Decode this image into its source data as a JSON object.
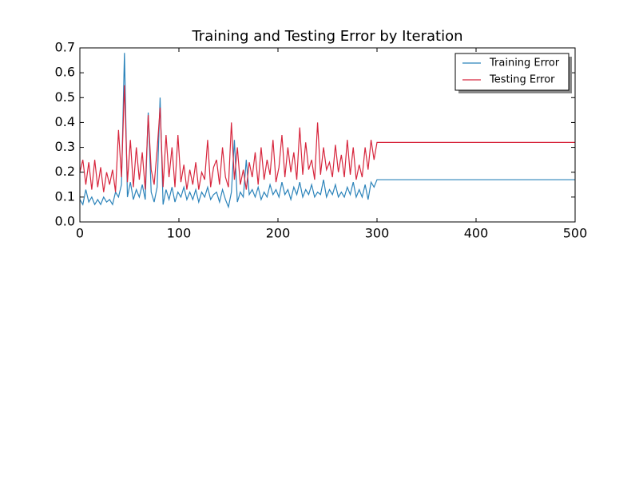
{
  "chart_data": {
    "type": "line",
    "title": "Training and Testing Error by Iteration",
    "x": [
      0,
      3,
      6,
      9,
      12,
      15,
      18,
      21,
      24,
      27,
      30,
      33,
      36,
      39,
      42,
      45,
      48,
      51,
      54,
      57,
      60,
      63,
      66,
      69,
      72,
      75,
      78,
      81,
      84,
      87,
      90,
      93,
      96,
      99,
      102,
      105,
      108,
      111,
      114,
      117,
      120,
      123,
      126,
      129,
      132,
      135,
      138,
      141,
      144,
      147,
      150,
      153,
      156,
      159,
      162,
      165,
      168,
      171,
      174,
      177,
      180,
      183,
      186,
      189,
      192,
      195,
      198,
      201,
      204,
      207,
      210,
      213,
      216,
      219,
      222,
      225,
      228,
      231,
      234,
      237,
      240,
      243,
      246,
      249,
      252,
      255,
      258,
      261,
      264,
      267,
      270,
      273,
      276,
      279,
      282,
      285,
      288,
      291,
      294,
      297,
      300,
      500
    ],
    "series": [
      {
        "name": "Training Error",
        "color": "#2b83ba",
        "values": [
          0.09,
          0.07,
          0.13,
          0.08,
          0.1,
          0.07,
          0.09,
          0.07,
          0.1,
          0.08,
          0.09,
          0.07,
          0.12,
          0.1,
          0.15,
          0.68,
          0.1,
          0.16,
          0.09,
          0.13,
          0.1,
          0.15,
          0.09,
          0.44,
          0.12,
          0.08,
          0.14,
          0.5,
          0.07,
          0.13,
          0.09,
          0.14,
          0.08,
          0.12,
          0.1,
          0.14,
          0.09,
          0.12,
          0.09,
          0.13,
          0.08,
          0.12,
          0.1,
          0.14,
          0.09,
          0.11,
          0.12,
          0.08,
          0.13,
          0.09,
          0.06,
          0.12,
          0.33,
          0.08,
          0.12,
          0.1,
          0.25,
          0.11,
          0.13,
          0.1,
          0.14,
          0.09,
          0.12,
          0.1,
          0.15,
          0.11,
          0.13,
          0.1,
          0.16,
          0.11,
          0.13,
          0.09,
          0.14,
          0.11,
          0.16,
          0.1,
          0.13,
          0.11,
          0.15,
          0.1,
          0.12,
          0.11,
          0.17,
          0.1,
          0.13,
          0.11,
          0.15,
          0.1,
          0.12,
          0.1,
          0.14,
          0.11,
          0.16,
          0.1,
          0.13,
          0.1,
          0.15,
          0.09,
          0.16,
          0.14,
          0.17,
          0.17
        ]
      },
      {
        "name": "Testing Error",
        "color": "#d7263d",
        "values": [
          0.2,
          0.25,
          0.15,
          0.24,
          0.13,
          0.25,
          0.14,
          0.22,
          0.12,
          0.2,
          0.15,
          0.21,
          0.12,
          0.37,
          0.18,
          0.55,
          0.16,
          0.33,
          0.14,
          0.3,
          0.17,
          0.28,
          0.13,
          0.43,
          0.21,
          0.15,
          0.29,
          0.46,
          0.14,
          0.35,
          0.18,
          0.3,
          0.14,
          0.35,
          0.16,
          0.23,
          0.13,
          0.21,
          0.15,
          0.24,
          0.13,
          0.2,
          0.17,
          0.33,
          0.14,
          0.22,
          0.25,
          0.15,
          0.3,
          0.18,
          0.14,
          0.4,
          0.17,
          0.3,
          0.15,
          0.21,
          0.13,
          0.24,
          0.18,
          0.28,
          0.15,
          0.3,
          0.17,
          0.25,
          0.19,
          0.33,
          0.16,
          0.22,
          0.35,
          0.18,
          0.3,
          0.2,
          0.28,
          0.17,
          0.38,
          0.19,
          0.32,
          0.21,
          0.25,
          0.17,
          0.4,
          0.19,
          0.3,
          0.21,
          0.24,
          0.18,
          0.31,
          0.2,
          0.27,
          0.18,
          0.33,
          0.19,
          0.3,
          0.17,
          0.23,
          0.18,
          0.3,
          0.21,
          0.33,
          0.25,
          0.32,
          0.32
        ]
      }
    ],
    "xlim": [
      0,
      500
    ],
    "xticks": [
      0,
      100,
      200,
      300,
      400,
      500
    ],
    "ylim": [
      0,
      0.7
    ],
    "yticks": [
      {
        "value": 0,
        "label": "0.0"
      },
      0.1,
      0.2,
      0.3,
      0.4,
      0.5,
      0.6,
      0.7
    ],
    "legend": "upper right",
    "grid": false
  }
}
